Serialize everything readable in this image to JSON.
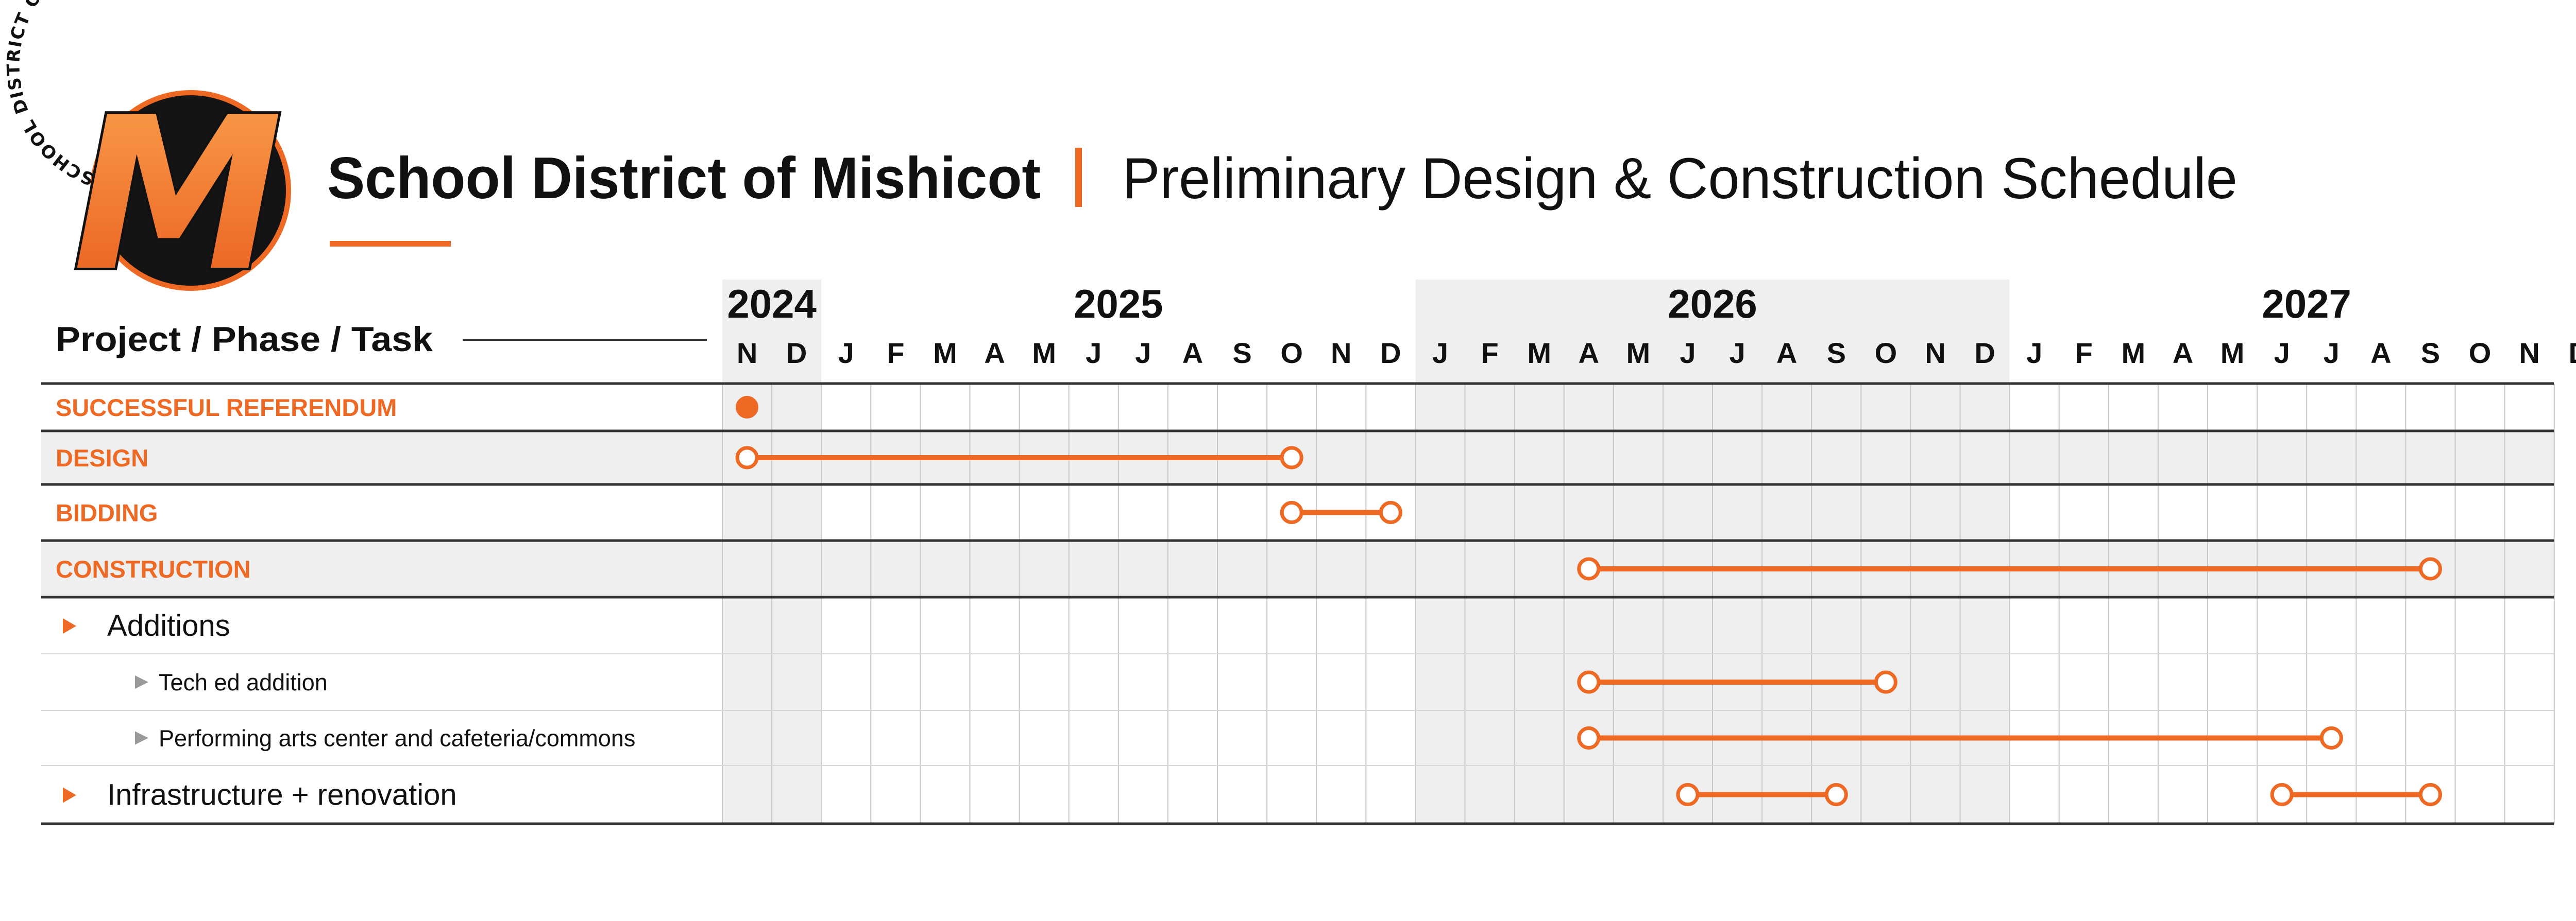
{
  "header": {
    "org": "School District of Mishicot",
    "title": "Preliminary Design & Construction Schedule",
    "logo_ring_text": "SCHOOL DISTRICT OF MISHICOT",
    "logo_letter": "M"
  },
  "colors": {
    "accent": "#EE6A24",
    "text": "#111111",
    "shade": "#EFEFEF",
    "grid": "#C8C8C8",
    "rule": "#333333",
    "marker": "#9A9A9A"
  },
  "chart_data": {
    "type": "gantt",
    "column_header": "Project / Phase / Task",
    "months": [
      "N",
      "D",
      "J",
      "F",
      "M",
      "A",
      "M",
      "J",
      "J",
      "A",
      "S",
      "O",
      "N",
      "D",
      "J",
      "F",
      "M",
      "A",
      "M",
      "J",
      "J",
      "A",
      "S",
      "O",
      "N",
      "D",
      "J",
      "F",
      "M",
      "A",
      "M",
      "J",
      "J",
      "A",
      "S",
      "O",
      "N",
      "D"
    ],
    "years": [
      {
        "label": "2024",
        "first_month_index": 0,
        "months": 2,
        "shaded": true
      },
      {
        "label": "2025",
        "first_month_index": 2,
        "months": 12,
        "shaded": false
      },
      {
        "label": "2026",
        "first_month_index": 14,
        "months": 12,
        "shaded": true
      },
      {
        "label": "2027",
        "first_month_index": 26,
        "months": 12,
        "shaded": false
      }
    ],
    "rows": [
      {
        "label": "SUCCESSFUL REFERENDUM",
        "level": "phase",
        "shaded": false,
        "milestones": [
          {
            "at": "2024-11",
            "style": "filled"
          }
        ],
        "bars": []
      },
      {
        "label": "DESIGN",
        "level": "phase",
        "shaded": true,
        "milestones": [],
        "bars": [
          {
            "start": "2024-11",
            "end": "2025-10"
          }
        ]
      },
      {
        "label": "BIDDING",
        "level": "phase",
        "shaded": false,
        "milestones": [],
        "bars": [
          {
            "start": "2025-10",
            "end": "2025-12"
          }
        ]
      },
      {
        "label": "CONSTRUCTION",
        "level": "phase",
        "shaded": true,
        "milestones": [],
        "bars": [
          {
            "start": "2026-04",
            "end": "2027-09"
          }
        ]
      },
      {
        "label": "Additions",
        "level": "project",
        "shaded": false,
        "milestones": [],
        "bars": []
      },
      {
        "label": "Tech ed addition",
        "level": "task",
        "shaded": false,
        "milestones": [],
        "bars": [
          {
            "start": "2026-04",
            "end": "2026-10"
          }
        ]
      },
      {
        "label": "Performing arts center and cafeteria/commons",
        "level": "task",
        "shaded": false,
        "milestones": [],
        "bars": [
          {
            "start": "2026-04",
            "end": "2027-07"
          }
        ]
      },
      {
        "label": "Infrastructure + renovation",
        "level": "project",
        "shaded": false,
        "milestones": [],
        "bars": [
          {
            "start": "2026-06",
            "end": "2026-09"
          },
          {
            "start": "2027-06",
            "end": "2027-09"
          }
        ]
      }
    ]
  }
}
